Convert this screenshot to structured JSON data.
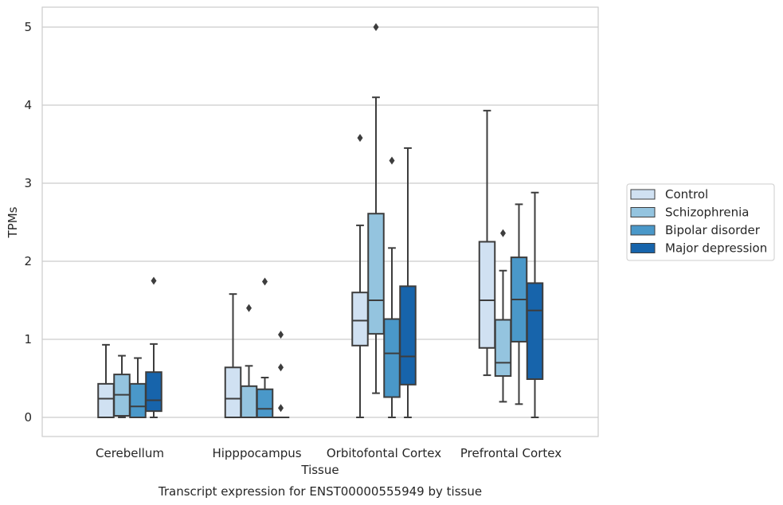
{
  "chart_data": {
    "type": "box",
    "xlabel": "Tissue",
    "ylabel": "TPMs",
    "caption": "Transcript expression for ENST00000555949 by tissue",
    "ylim": [
      -0.24,
      5.26
    ],
    "yticks": [
      "0",
      "1",
      "2",
      "3",
      "4",
      "5"
    ],
    "grid": "horizontal",
    "legend_position": "right",
    "categories": [
      "Cerebellum",
      "Hipppocampus",
      "Orbitofontal Cortex",
      "Prefrontal Cortex"
    ],
    "series": [
      {
        "name": "Control",
        "color": "#d0e1f2",
        "boxes": [
          {
            "whislo": 0.0,
            "q1": 0.0,
            "med": 0.24,
            "q3": 0.43,
            "whishi": 0.93,
            "fliers": []
          },
          {
            "whislo": 0.0,
            "q1": 0.0,
            "med": 0.24,
            "q3": 0.64,
            "whishi": 1.58,
            "fliers": []
          },
          {
            "whislo": 0.0,
            "q1": 0.92,
            "med": 1.24,
            "q3": 1.6,
            "whishi": 2.46,
            "fliers": [
              3.58
            ]
          },
          {
            "whislo": 0.54,
            "q1": 0.89,
            "med": 1.5,
            "q3": 2.25,
            "whishi": 3.93,
            "fliers": []
          }
        ]
      },
      {
        "name": "Schizophrenia",
        "color": "#94c4df",
        "boxes": [
          {
            "whislo": 0.0,
            "q1": 0.02,
            "med": 0.29,
            "q3": 0.55,
            "whishi": 0.79,
            "fliers": []
          },
          {
            "whislo": 0.0,
            "q1": 0.0,
            "med": 0.0,
            "q3": 0.4,
            "whishi": 0.66,
            "fliers": [
              1.4
            ]
          },
          {
            "whislo": 0.31,
            "q1": 1.07,
            "med": 1.5,
            "q3": 2.61,
            "whishi": 4.1,
            "fliers": [
              5.0
            ]
          },
          {
            "whislo": 0.2,
            "q1": 0.53,
            "med": 0.7,
            "q3": 1.25,
            "whishi": 1.88,
            "fliers": [
              2.36
            ]
          }
        ]
      },
      {
        "name": "Bipolar disorder",
        "color": "#4a98c9",
        "boxes": [
          {
            "whislo": 0.0,
            "q1": 0.0,
            "med": 0.14,
            "q3": 0.43,
            "whishi": 0.76,
            "fliers": []
          },
          {
            "whislo": 0.0,
            "q1": 0.0,
            "med": 0.11,
            "q3": 0.36,
            "whishi": 0.51,
            "fliers": [
              1.74
            ]
          },
          {
            "whislo": 0.0,
            "q1": 0.26,
            "med": 0.82,
            "q3": 1.26,
            "whishi": 2.17,
            "fliers": [
              3.29
            ]
          },
          {
            "whislo": 0.17,
            "q1": 0.97,
            "med": 1.51,
            "q3": 2.05,
            "whishi": 2.73,
            "fliers": []
          }
        ]
      },
      {
        "name": "Major depression",
        "color": "#1764ab",
        "boxes": [
          {
            "whislo": 0.0,
            "q1": 0.08,
            "med": 0.22,
            "q3": 0.58,
            "whishi": 0.94,
            "fliers": [
              1.75
            ]
          },
          {
            "whislo": 0.0,
            "q1": 0.0,
            "med": 0.0,
            "q3": 0.0,
            "whishi": 0.0,
            "fliers": [
              0.12,
              0.64,
              1.06
            ]
          },
          {
            "whislo": 0.0,
            "q1": 0.42,
            "med": 0.78,
            "q3": 1.68,
            "whishi": 3.45,
            "fliers": []
          },
          {
            "whislo": 0.0,
            "q1": 0.49,
            "med": 1.37,
            "q3": 1.72,
            "whishi": 2.88,
            "fliers": []
          }
        ]
      }
    ]
  }
}
